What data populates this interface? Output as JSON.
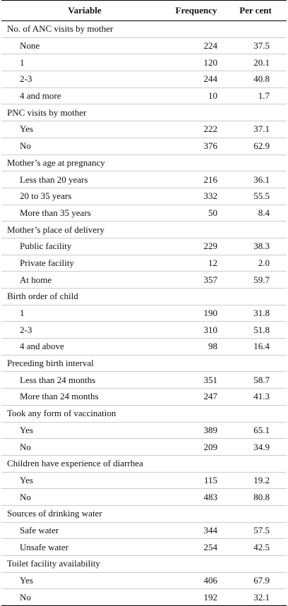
{
  "header": {
    "variable": "Variable",
    "frequency": "Frequency",
    "percent": "Per cent"
  },
  "groups": [
    {
      "title": "No. of ANC visits by mother",
      "rows": [
        {
          "label": "None",
          "frequency": "224",
          "percent": "37.5"
        },
        {
          "label": "1",
          "frequency": "120",
          "percent": "20.1"
        },
        {
          "label": "2-3",
          "frequency": "244",
          "percent": "40.8"
        },
        {
          "label": "4 and more",
          "frequency": "10",
          "percent": "1.7"
        }
      ]
    },
    {
      "title": "PNC visits by mother",
      "rows": [
        {
          "label": "Yes",
          "frequency": "222",
          "percent": "37.1"
        },
        {
          "label": "No",
          "frequency": "376",
          "percent": "62.9"
        }
      ]
    },
    {
      "title": "Mother’s age at pregnancy",
      "rows": [
        {
          "label": "Less than 20 years",
          "frequency": "216",
          "percent": "36.1"
        },
        {
          "label": "20 to 35 years",
          "frequency": "332",
          "percent": "55.5"
        },
        {
          "label": "More than 35 years",
          "frequency": "50",
          "percent": "8.4"
        }
      ]
    },
    {
      "title": "Mother’s place of delivery",
      "rows": [
        {
          "label": "Public facility",
          "frequency": "229",
          "percent": "38.3"
        },
        {
          "label": "Private facility",
          "frequency": "12",
          "percent": "2.0"
        },
        {
          "label": "At home",
          "frequency": "357",
          "percent": "59.7"
        }
      ]
    },
    {
      "title": "Birth order of child",
      "rows": [
        {
          "label": "1",
          "frequency": "190",
          "percent": "31.8"
        },
        {
          "label": "2-3",
          "frequency": "310",
          "percent": "51.8"
        },
        {
          "label": "4 and above",
          "frequency": "98",
          "percent": "16.4"
        }
      ]
    },
    {
      "title": "Preceding birth interval",
      "rows": [
        {
          "label": "Less than 24 months",
          "frequency": "351",
          "percent": "58.7"
        },
        {
          "label": "More than 24 months",
          "frequency": "247",
          "percent": "41.3"
        }
      ]
    },
    {
      "title": "Took any form of vaccination",
      "rows": [
        {
          "label": "Yes",
          "frequency": "389",
          "percent": "65.1"
        },
        {
          "label": "No",
          "frequency": "209",
          "percent": "34.9"
        }
      ]
    },
    {
      "title": "Children have experience of diarrhea",
      "rows": [
        {
          "label": "Yes",
          "frequency": "115",
          "percent": "19.2"
        },
        {
          "label": "No",
          "frequency": "483",
          "percent": "80.8"
        }
      ]
    },
    {
      "title": "Sources of drinking water",
      "rows": [
        {
          "label": "Safe water",
          "frequency": "344",
          "percent": "57.5"
        },
        {
          "label": "Unsafe water",
          "frequency": "254",
          "percent": "42.5"
        }
      ]
    },
    {
      "title": "Toilet facility availability",
      "rows": [
        {
          "label": "Yes",
          "frequency": "406",
          "percent": "67.9"
        },
        {
          "label": "No",
          "frequency": "192",
          "percent": "32.1"
        }
      ]
    }
  ]
}
